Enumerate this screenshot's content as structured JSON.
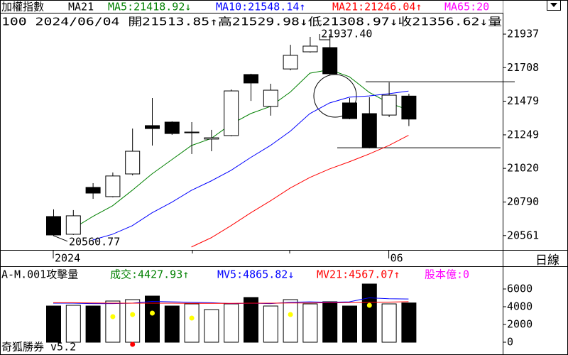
{
  "chart_data": [
    {
      "type": "candlestick",
      "title": "加權指數",
      "subtitle": "MA21",
      "quote": "100 2024/06/04 開21513.85↑高21529.98↓低21308.97↓收21356.62↓量",
      "categories": [
        "2024",
        null,
        null,
        null,
        null,
        null,
        null,
        null,
        null,
        null,
        null,
        null,
        null,
        null,
        null,
        null,
        null,
        "06",
        null
      ],
      "open": [
        20691,
        20570,
        20890,
        20827,
        20982,
        21312,
        21336,
        21263,
        21220,
        21244,
        21661,
        21443,
        21699,
        21816,
        21845,
        21467,
        21394,
        21384,
        21513.85
      ],
      "high": [
        20740,
        20735,
        20919,
        20992,
        21292,
        21501,
        21341,
        21336,
        21283,
        21559,
        21666,
        21598,
        21864,
        21918,
        21937.4,
        21501,
        21506,
        21607,
        21529.98
      ],
      "low": [
        20560.77,
        20565,
        20812,
        20822,
        20972,
        21176,
        21249,
        21118,
        21137,
        21239,
        21481,
        21380,
        21690,
        21811,
        21656,
        21355,
        21157,
        21370,
        21308.97
      ],
      "close": [
        20565,
        20696,
        20851,
        20968,
        21137,
        21292,
        21258,
        21268,
        21229,
        21549,
        21603,
        21554,
        21792,
        21855,
        21666,
        21360,
        21161,
        21520,
        21356.62
      ],
      "up_color": "#ffffff",
      "down_color": "#000000",
      "series": [
        {
          "name": "MA5:21418.92↓",
          "color": "#008000",
          "values": [
            null,
            20609,
            20691,
            20764,
            20870,
            20982,
            21079,
            21176,
            21224,
            21321,
            21394,
            21443,
            21540,
            21670,
            21694,
            21646,
            21540,
            21467,
            21418.92
          ]
        },
        {
          "name": "MA10:21548.14↑",
          "color": "#0000ff",
          "values": [
            null,
            null,
            20531,
            20570,
            20628,
            20716,
            20788,
            20870,
            20934,
            21006,
            21094,
            21176,
            21273,
            21394,
            21467,
            21506,
            21515,
            21530,
            21548.14
          ]
        },
        {
          "name": "MA21:21246.04↑",
          "color": "#ff0000",
          "values": [
            null,
            null,
            null,
            null,
            null,
            null,
            null,
            20483,
            20546,
            20628,
            20716,
            20798,
            20885,
            20958,
            21016,
            21065,
            21118,
            21176,
            21246.04
          ]
        },
        {
          "name": "MA65:20",
          "color": "#ff00ff",
          "values": [
            null,
            null,
            null,
            null,
            null,
            null,
            null,
            null,
            null,
            null,
            null,
            null,
            null,
            null,
            null,
            null,
            null,
            null,
            null
          ]
        }
      ],
      "annotations": [
        {
          "text": "21937.40",
          "index": 14,
          "value": 21937.4
        },
        {
          "text": "20560.77",
          "index": 0,
          "value": 20560.77
        }
      ],
      "hlines": [
        21612,
        21161
      ],
      "ylim": [
        20463,
        22170
      ],
      "yticks": [
        21937,
        21708,
        21479,
        21249,
        21020,
        20790,
        20561
      ]
    },
    {
      "type": "volume",
      "title": "A-M.001攻擊量",
      "value_name": "成交:4427.93↑",
      "value_name_color": "#008000",
      "values": [
        4080,
        4160,
        4080,
        4640,
        4800,
        5200,
        4080,
        4320,
        3680,
        4320,
        5040,
        4080,
        4800,
        4320,
        4560,
        4080,
        6560,
        4320,
        4427.93
      ],
      "series": [
        {
          "name": "MV5:4865.82↓",
          "color": "#0000ff",
          "values": [
            4400,
            4400,
            4350,
            4350,
            4400,
            4600,
            4550,
            4500,
            4450,
            4350,
            4400,
            4350,
            4500,
            4550,
            4500,
            4550,
            5000,
            4900,
            4865.82
          ]
        },
        {
          "name": "MV21:4567.07↑",
          "color": "#ff0000",
          "values": [
            4450,
            4450,
            4420,
            4400,
            4400,
            4400,
            4400,
            4380,
            4380,
            4380,
            4400,
            4400,
            4420,
            4420,
            4450,
            4450,
            4500,
            4520,
            4567.07
          ]
        }
      ],
      "extra_legend": {
        "text": "股本億:0",
        "color": "#ff00ff"
      },
      "signals": [
        {
          "color": "#ffff00",
          "values": [
            null,
            null,
            null,
            2880,
            3120,
            3280,
            null,
            2720,
            null,
            null,
            null,
            null,
            3120,
            null,
            null,
            null,
            4160,
            null,
            null
          ]
        },
        {
          "color": "#ff0000",
          "values": [
            null,
            null,
            null,
            null,
            -240,
            null,
            null,
            null,
            null,
            null,
            null,
            null,
            null,
            null,
            null,
            null,
            null,
            null,
            null
          ]
        }
      ],
      "ylim": [
        -1200,
        8560
      ],
      "yticks": [
        6000,
        4000,
        2000,
        0
      ]
    }
  ],
  "period": "日線",
  "footer": "奇狐勝券 v5.2"
}
